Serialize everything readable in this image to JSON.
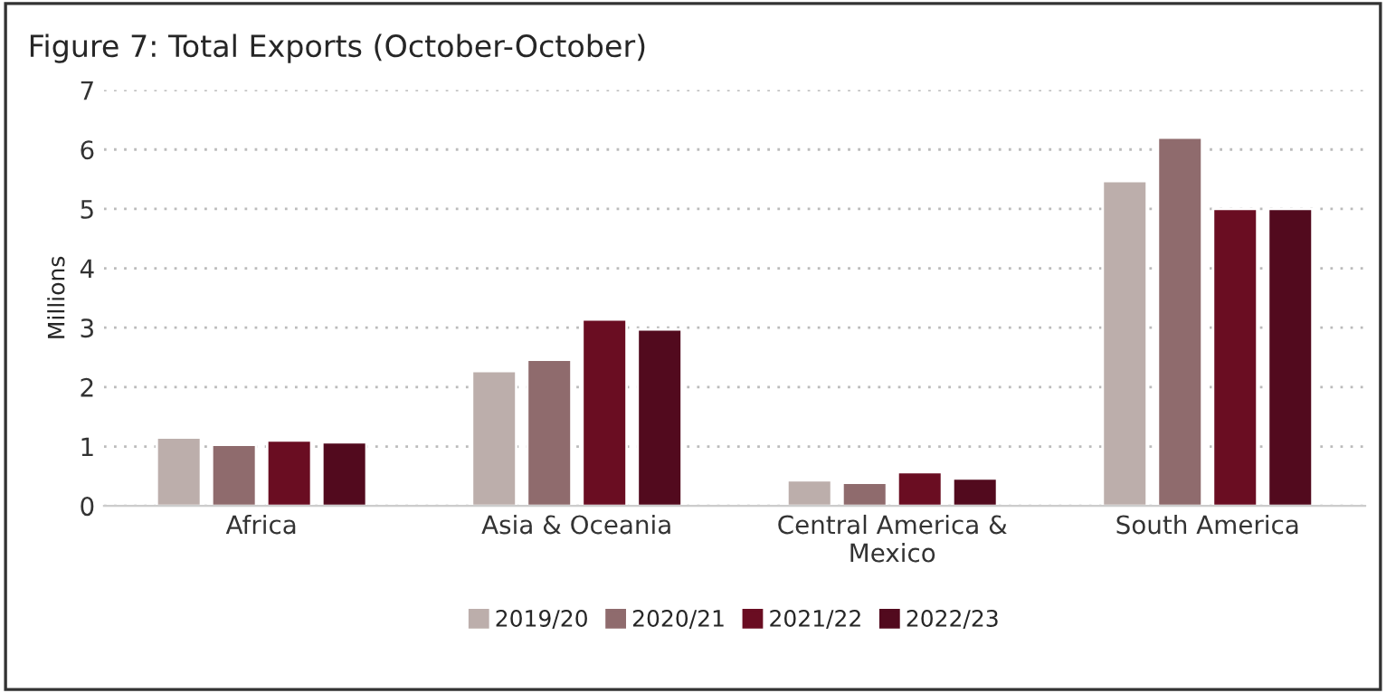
{
  "chart_data": {
    "type": "bar",
    "title": "Figure 7: Total Exports (October-October)",
    "ylabel": "Millions",
    "categories": [
      "Africa",
      "Asia & Oceania",
      "Central America &\nMexico",
      "South America"
    ],
    "series": [
      {
        "name": "2019/20",
        "color": "#bcaeab",
        "values": [
          1.15,
          2.27,
          0.43,
          5.47
        ]
      },
      {
        "name": "2020/21",
        "color": "#8f6b6d",
        "values": [
          1.03,
          2.46,
          0.39,
          6.2
        ]
      },
      {
        "name": "2021/22",
        "color": "#6a0d22",
        "values": [
          1.1,
          3.14,
          0.57,
          5.0
        ]
      },
      {
        "name": "2022/23",
        "color": "#520a1e",
        "values": [
          1.07,
          2.97,
          0.46,
          5.0
        ]
      }
    ],
    "ylim": [
      0,
      7
    ],
    "yticks": [
      0,
      1,
      2,
      3,
      4,
      5,
      6,
      7
    ],
    "grid": "y",
    "legend": "bottom"
  }
}
